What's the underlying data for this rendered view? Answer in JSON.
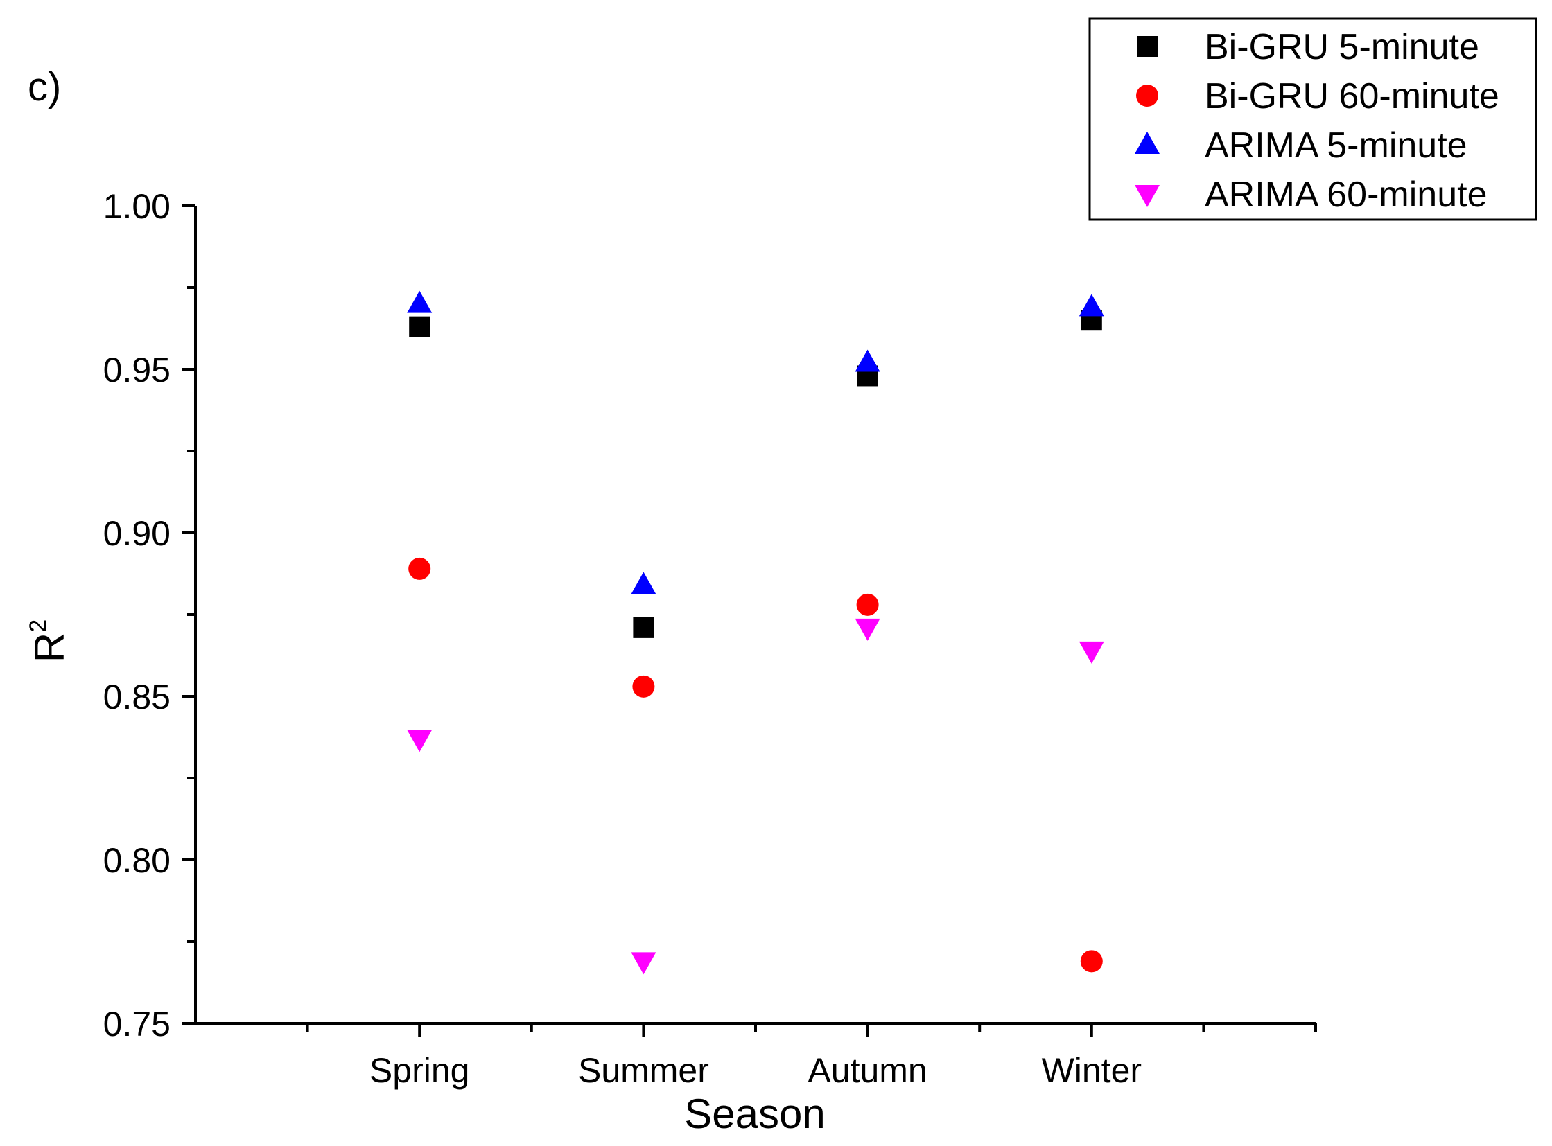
{
  "panel_label": "c)",
  "chart_data": {
    "type": "scatter",
    "title": "",
    "xlabel": "Season",
    "ylabel": "R",
    "ylabel_superscript": "2",
    "categories": [
      "Spring",
      "Summer",
      "Autumn",
      "Winter"
    ],
    "ylim": [
      0.75,
      1.0
    ],
    "yticks": [
      "0.75",
      "0.80",
      "0.85",
      "0.90",
      "0.95",
      "1.00"
    ],
    "yticks_values": [
      0.75,
      0.8,
      0.85,
      0.9,
      0.95,
      1.0
    ],
    "grid": false,
    "legend_position": "top-right",
    "series": [
      {
        "name": "Bi-GRU 5-minute",
        "marker": "square",
        "color": "#000000",
        "values": [
          0.963,
          0.871,
          0.948,
          0.965
        ]
      },
      {
        "name": "Bi-GRU 60-minute",
        "marker": "circle",
        "color": "#ff0000",
        "values": [
          0.889,
          0.853,
          0.878,
          0.769
        ]
      },
      {
        "name": "ARIMA 5-minute",
        "marker": "triangle-up",
        "color": "#0000ff",
        "values": [
          0.97,
          0.884,
          0.952,
          0.969
        ]
      },
      {
        "name": "ARIMA 60-minute",
        "marker": "triangle-down",
        "color": "#ff00ff",
        "values": [
          0.837,
          0.769,
          0.871,
          0.864
        ]
      }
    ]
  }
}
